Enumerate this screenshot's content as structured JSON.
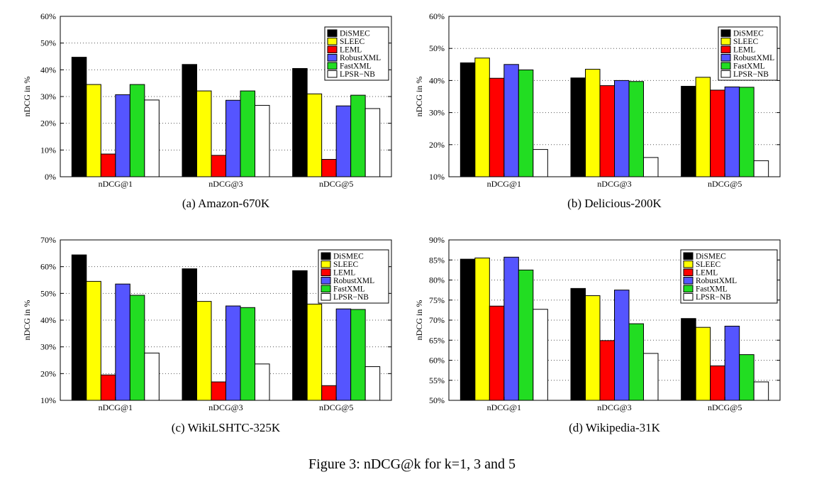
{
  "figure_caption": "Figure 3: nDCG@k for k=1, 3 and 5",
  "chart_data": [
    {
      "type": "bar",
      "caption": "(a) Amazon-670K",
      "ylabel": "nDCG in %",
      "categories": [
        "nDCG@1",
        "nDCG@3",
        "nDCG@5"
      ],
      "ylim": [
        0,
        60
      ],
      "yticks": [
        "0%",
        "10%",
        "20%",
        "30%",
        "40%",
        "50%",
        "60%"
      ],
      "grid": "dotted horizontal",
      "legend_position": "top-right",
      "series": [
        {
          "name": "DiSMEC",
          "color": "#000000",
          "values": [
            44.7,
            42.0,
            40.5
          ]
        },
        {
          "name": "SLEEC",
          "color": "#ffff00",
          "values": [
            34.5,
            32.1,
            31.0
          ]
        },
        {
          "name": "LEML",
          "color": "#ff0000",
          "values": [
            8.5,
            8.0,
            6.5
          ]
        },
        {
          "name": "RobustXML",
          "color": "#5555ff",
          "values": [
            30.7,
            28.6,
            26.5
          ]
        },
        {
          "name": "FastXML",
          "color": "#22dd22",
          "values": [
            34.5,
            32.1,
            30.5
          ]
        },
        {
          "name": "LPSR−NB",
          "color": "#ffffff",
          "values": [
            28.7,
            26.7,
            25.5
          ]
        }
      ]
    },
    {
      "type": "bar",
      "caption": "(b) Delicious-200K",
      "ylabel": "nDCG in %",
      "categories": [
        "nDCG@1",
        "nDCG@3",
        "nDCG@5"
      ],
      "ylim": [
        10,
        60
      ],
      "yticks": [
        "10%",
        "20%",
        "30%",
        "40%",
        "50%",
        "60%"
      ],
      "grid": "dotted horizontal",
      "legend_position": "top-right",
      "series": [
        {
          "name": "DiSMEC",
          "color": "#000000",
          "values": [
            45.5,
            40.8,
            38.2
          ]
        },
        {
          "name": "SLEEC",
          "color": "#ffff00",
          "values": [
            47.0,
            43.5,
            41.0
          ]
        },
        {
          "name": "LEML",
          "color": "#ff0000",
          "values": [
            40.7,
            38.4,
            37.0
          ]
        },
        {
          "name": "RobustXML",
          "color": "#5555ff",
          "values": [
            45.0,
            40.0,
            38.0
          ]
        },
        {
          "name": "FastXML",
          "color": "#22dd22",
          "values": [
            43.3,
            39.7,
            37.9
          ]
        },
        {
          "name": "LPSR−NB",
          "color": "#ffffff",
          "values": [
            18.5,
            16.0,
            15.0
          ]
        }
      ]
    },
    {
      "type": "bar",
      "caption": "(c) WikiLSHTC-325K",
      "ylabel": "nDCG in %",
      "categories": [
        "nDCG@1",
        "nDCG@3",
        "nDCG@5"
      ],
      "ylim": [
        10,
        70
      ],
      "yticks": [
        "10%",
        "20%",
        "30%",
        "40%",
        "50%",
        "60%",
        "70%"
      ],
      "grid": "dotted horizontal",
      "legend_position": "top-right",
      "series": [
        {
          "name": "DiSMEC",
          "color": "#000000",
          "values": [
            64.4,
            59.2,
            58.5
          ]
        },
        {
          "name": "SLEEC",
          "color": "#ffff00",
          "values": [
            54.5,
            47.0,
            46.0
          ]
        },
        {
          "name": "LEML",
          "color": "#ff0000",
          "values": [
            19.5,
            16.9,
            15.5
          ]
        },
        {
          "name": "RobustXML",
          "color": "#5555ff",
          "values": [
            53.5,
            45.3,
            44.2
          ]
        },
        {
          "name": "FastXML",
          "color": "#22dd22",
          "values": [
            49.3,
            44.7,
            44.0
          ]
        },
        {
          "name": "LPSR−NB",
          "color": "#ffffff",
          "values": [
            27.7,
            23.6,
            22.6
          ]
        }
      ]
    },
    {
      "type": "bar",
      "caption": "(d) Wikipedia-31K",
      "ylabel": "nDCG in %",
      "categories": [
        "nDCG@1",
        "nDCG@3",
        "nDCG@5"
      ],
      "ylim": [
        50,
        90
      ],
      "yticks": [
        "50%",
        "55%",
        "60%",
        "65%",
        "70%",
        "75%",
        "80%",
        "85%",
        "90%"
      ],
      "grid": "dotted horizontal",
      "legend_position": "top-right",
      "series": [
        {
          "name": "DiSMEC",
          "color": "#000000",
          "values": [
            85.2,
            77.9,
            70.4
          ]
        },
        {
          "name": "SLEEC",
          "color": "#ffff00",
          "values": [
            85.5,
            76.1,
            68.2
          ]
        },
        {
          "name": "LEML",
          "color": "#ff0000",
          "values": [
            73.5,
            64.9,
            58.6
          ]
        },
        {
          "name": "RobustXML",
          "color": "#5555ff",
          "values": [
            85.7,
            77.5,
            68.5
          ]
        },
        {
          "name": "FastXML",
          "color": "#22dd22",
          "values": [
            82.5,
            69.1,
            61.4
          ]
        },
        {
          "name": "LPSR−NB",
          "color": "#ffffff",
          "values": [
            72.7,
            61.7,
            54.6
          ]
        }
      ]
    }
  ]
}
